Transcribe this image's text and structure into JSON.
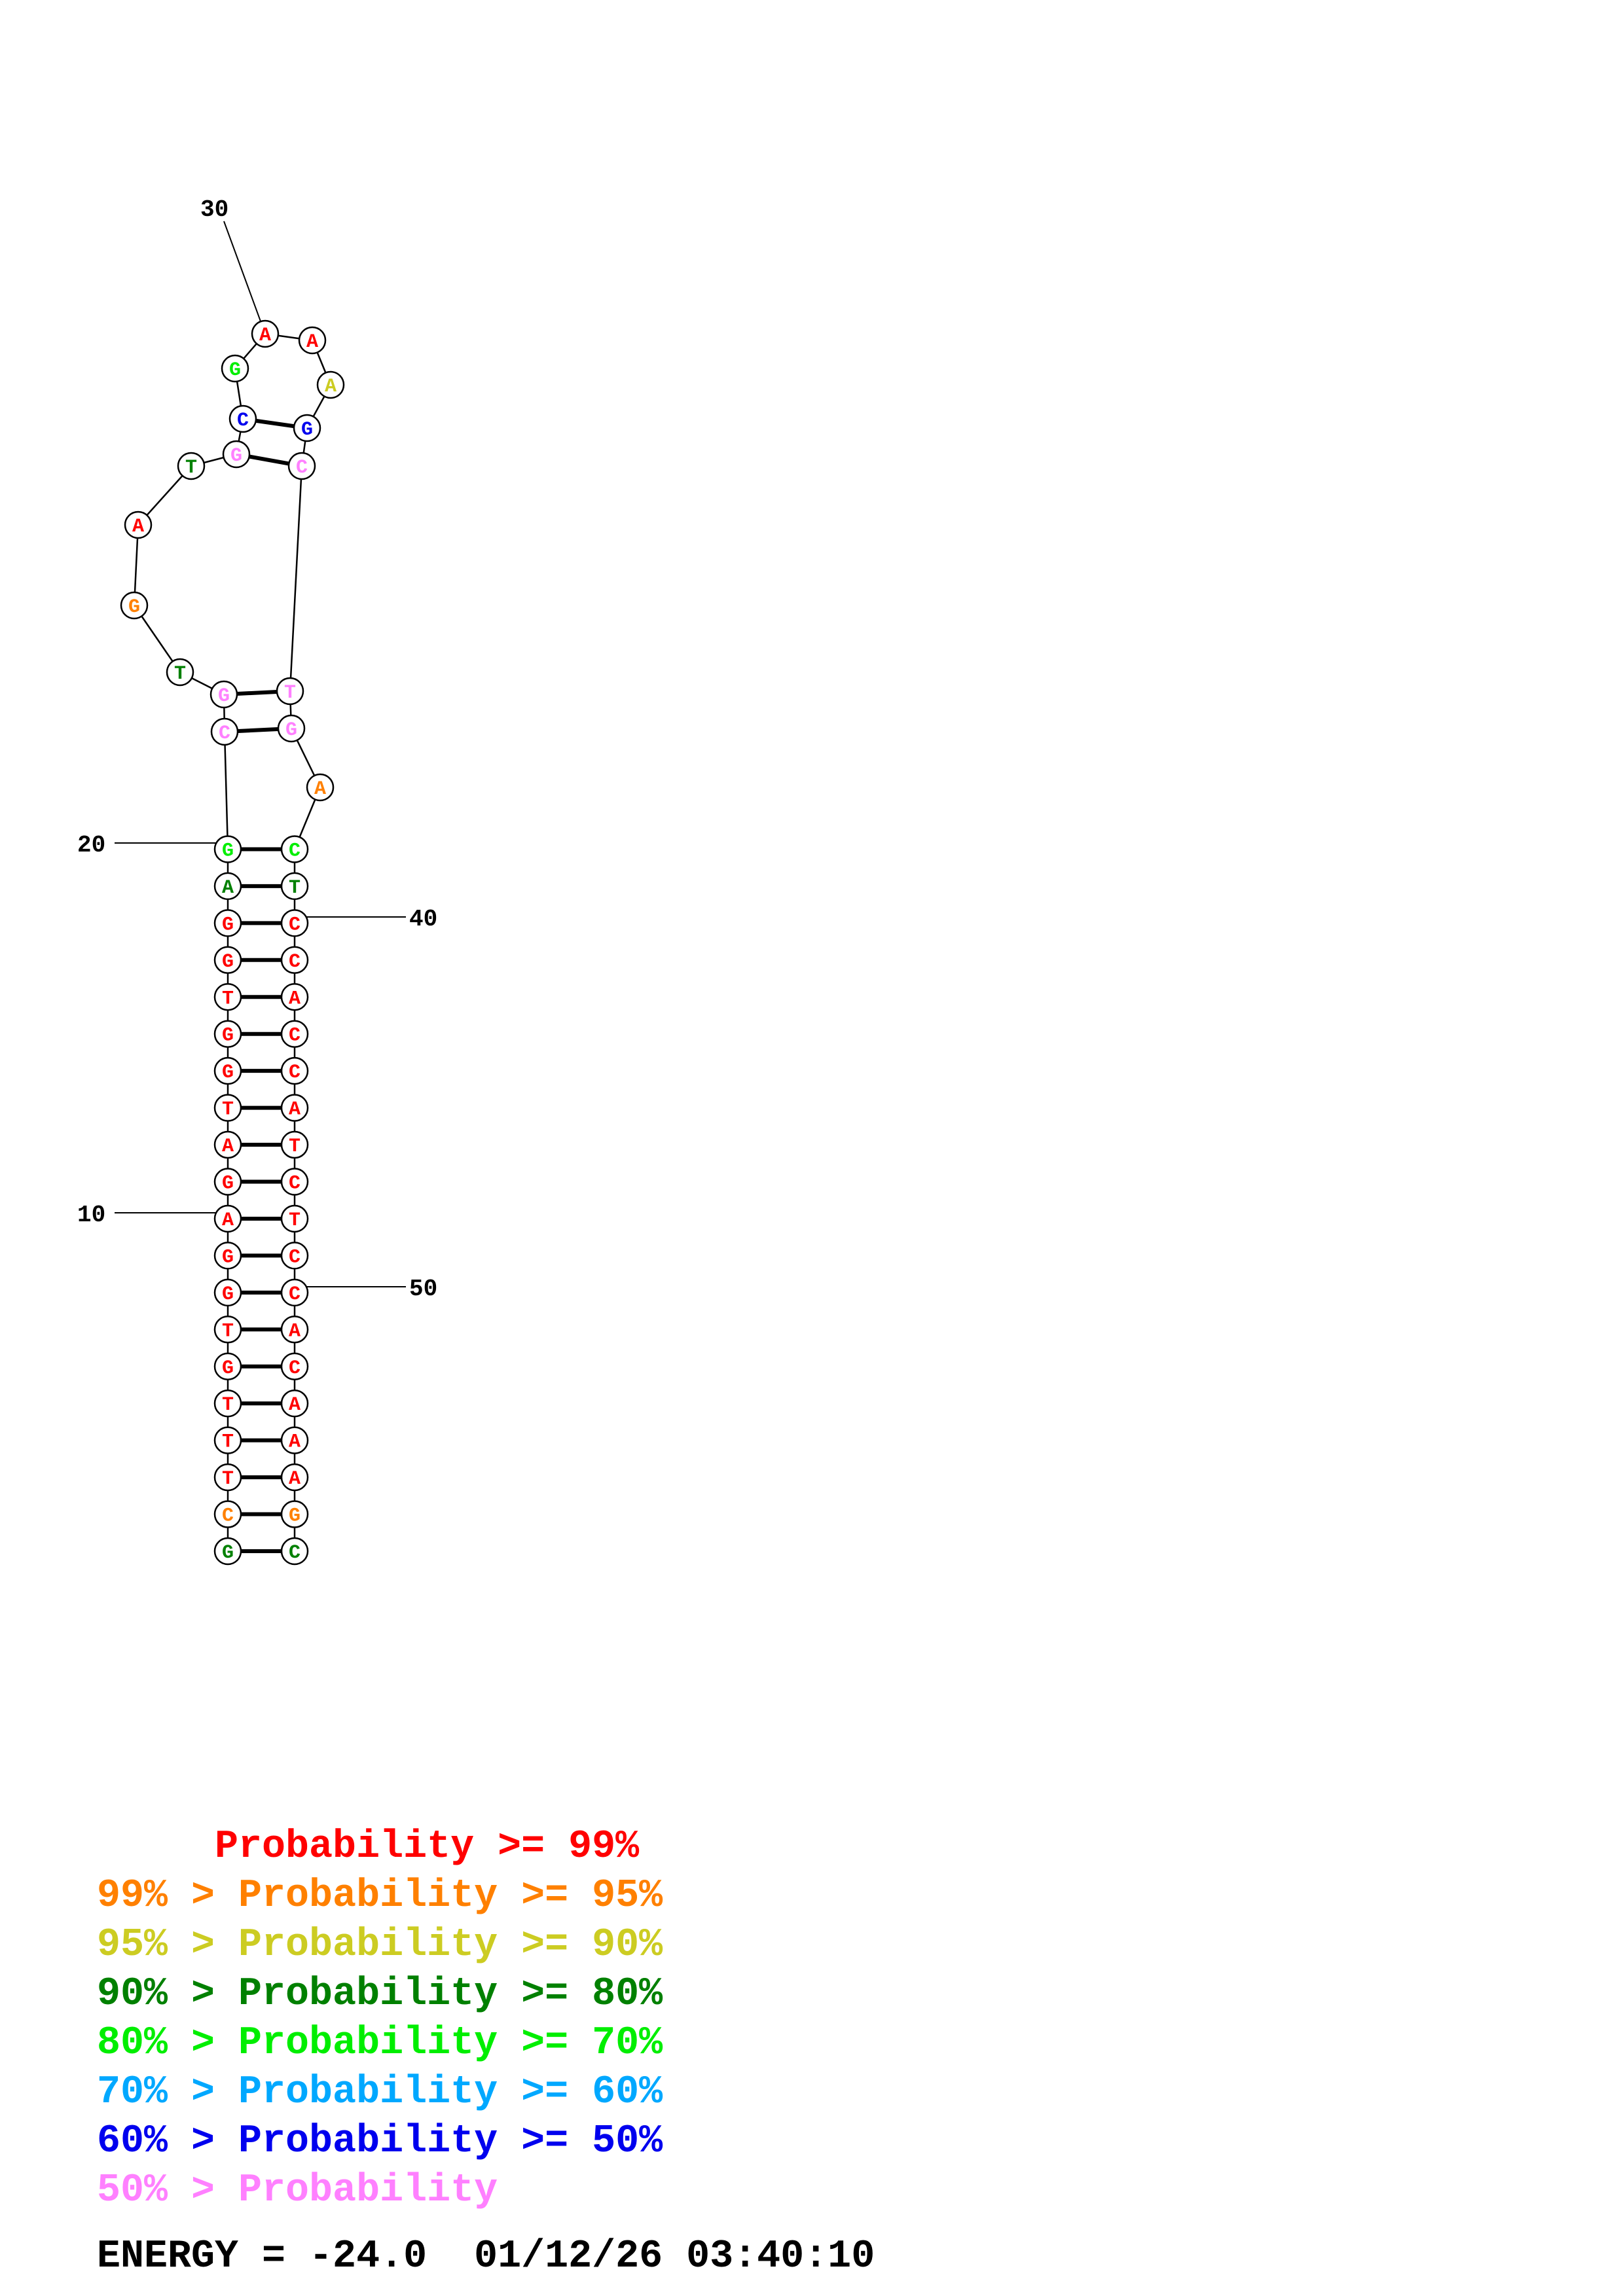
{
  "colors": {
    "red": "#ff0000",
    "orange": "#ff8000",
    "yellow": "#cccc22",
    "darkgreen": "#008000",
    "green": "#00ee00",
    "cyan": "#00a8ff",
    "blue": "#0000ee",
    "pink": "#ff80ff"
  },
  "structure": {
    "bases": [
      {
        "n": 1,
        "b": "G",
        "c": "darkgreen"
      },
      {
        "n": 2,
        "b": "C",
        "c": "orange"
      },
      {
        "n": 3,
        "b": "T",
        "c": "red"
      },
      {
        "n": 4,
        "b": "T",
        "c": "red"
      },
      {
        "n": 5,
        "b": "T",
        "c": "red"
      },
      {
        "n": 6,
        "b": "G",
        "c": "red"
      },
      {
        "n": 7,
        "b": "T",
        "c": "red"
      },
      {
        "n": 8,
        "b": "G",
        "c": "red"
      },
      {
        "n": 9,
        "b": "G",
        "c": "red"
      },
      {
        "n": 10,
        "b": "A",
        "c": "red"
      },
      {
        "n": 11,
        "b": "G",
        "c": "red"
      },
      {
        "n": 12,
        "b": "A",
        "c": "red"
      },
      {
        "n": 13,
        "b": "T",
        "c": "red"
      },
      {
        "n": 14,
        "b": "G",
        "c": "red"
      },
      {
        "n": 15,
        "b": "G",
        "c": "red"
      },
      {
        "n": 16,
        "b": "T",
        "c": "red"
      },
      {
        "n": 17,
        "b": "G",
        "c": "red"
      },
      {
        "n": 18,
        "b": "G",
        "c": "red"
      },
      {
        "n": 19,
        "b": "A",
        "c": "darkgreen"
      },
      {
        "n": 20,
        "b": "G",
        "c": "green"
      },
      {
        "n": 21,
        "b": "C",
        "c": "pink"
      },
      {
        "n": 22,
        "b": "G",
        "c": "pink"
      },
      {
        "n": 23,
        "b": "T",
        "c": "darkgreen"
      },
      {
        "n": 24,
        "b": "G",
        "c": "orange"
      },
      {
        "n": 25,
        "b": "A",
        "c": "red"
      },
      {
        "n": 26,
        "b": "T",
        "c": "darkgreen"
      },
      {
        "n": 27,
        "b": "G",
        "c": "pink"
      },
      {
        "n": 28,
        "b": "C",
        "c": "blue"
      },
      {
        "n": 29,
        "b": "G",
        "c": "green"
      },
      {
        "n": 30,
        "b": "A",
        "c": "red"
      },
      {
        "n": 31,
        "b": "A",
        "c": "red"
      },
      {
        "n": 32,
        "b": "A",
        "c": "yellow"
      },
      {
        "n": 33,
        "b": "G",
        "c": "blue"
      },
      {
        "n": 34,
        "b": "C",
        "c": "pink"
      },
      {
        "n": 35,
        "b": "T",
        "c": "pink"
      },
      {
        "n": 36,
        "b": "G",
        "c": "pink"
      },
      {
        "n": 37,
        "b": "A",
        "c": "orange"
      },
      {
        "n": 38,
        "b": "C",
        "c": "green"
      },
      {
        "n": 39,
        "b": "T",
        "c": "darkgreen"
      },
      {
        "n": 40,
        "b": "C",
        "c": "red"
      },
      {
        "n": 41,
        "b": "C",
        "c": "red"
      },
      {
        "n": 42,
        "b": "A",
        "c": "red"
      },
      {
        "n": 43,
        "b": "C",
        "c": "red"
      },
      {
        "n": 44,
        "b": "C",
        "c": "red"
      },
      {
        "n": 45,
        "b": "A",
        "c": "red"
      },
      {
        "n": 46,
        "b": "T",
        "c": "red"
      },
      {
        "n": 47,
        "b": "C",
        "c": "red"
      },
      {
        "n": 48,
        "b": "T",
        "c": "red"
      },
      {
        "n": 49,
        "b": "C",
        "c": "red"
      },
      {
        "n": 50,
        "b": "C",
        "c": "red"
      },
      {
        "n": 51,
        "b": "A",
        "c": "red"
      },
      {
        "n": 52,
        "b": "C",
        "c": "red"
      },
      {
        "n": 53,
        "b": "A",
        "c": "red"
      },
      {
        "n": 54,
        "b": "A",
        "c": "red"
      },
      {
        "n": 55,
        "b": "A",
        "c": "red"
      },
      {
        "n": 56,
        "b": "G",
        "c": "orange"
      },
      {
        "n": 57,
        "b": "C",
        "c": "darkgreen"
      }
    ],
    "pairs": [
      [
        1,
        57
      ],
      [
        2,
        56
      ],
      [
        3,
        55
      ],
      [
        4,
        54
      ],
      [
        5,
        53
      ],
      [
        6,
        52
      ],
      [
        7,
        51
      ],
      [
        8,
        50
      ],
      [
        9,
        49
      ],
      [
        10,
        48
      ],
      [
        11,
        47
      ],
      [
        12,
        46
      ],
      [
        13,
        45
      ],
      [
        14,
        44
      ],
      [
        15,
        43
      ],
      [
        16,
        42
      ],
      [
        17,
        41
      ],
      [
        18,
        40
      ],
      [
        19,
        39
      ],
      [
        20,
        38
      ],
      [
        21,
        36
      ],
      [
        22,
        35
      ],
      [
        27,
        34
      ],
      [
        28,
        33
      ]
    ],
    "index_labels": [
      "10",
      "20",
      "30",
      "40",
      "50"
    ]
  },
  "legend": [
    {
      "text": "     Probability >= 99%",
      "color": "red"
    },
    {
      "text": "99% > Probability >= 95%",
      "color": "orange"
    },
    {
      "text": "95% > Probability >= 90%",
      "color": "yellow"
    },
    {
      "text": "90% > Probability >= 80%",
      "color": "darkgreen"
    },
    {
      "text": "80% > Probability >= 70%",
      "color": "green"
    },
    {
      "text": "70% > Probability >= 60%",
      "color": "cyan"
    },
    {
      "text": "60% > Probability >= 50%",
      "color": "blue"
    },
    {
      "text": "50% > Probability",
      "color": "pink"
    }
  ],
  "energy": {
    "text": "ENERGY = -24.0  01/12/26 03:40:10"
  }
}
